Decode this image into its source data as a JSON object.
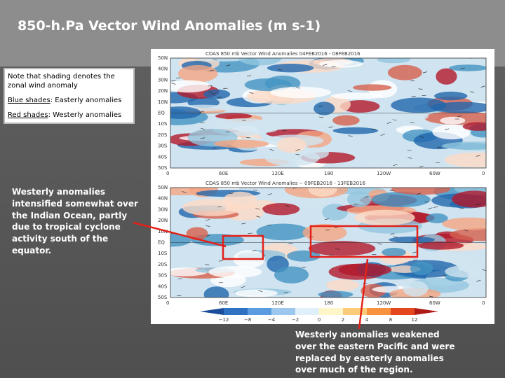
{
  "title": "850-h.Pa Vector Wind Anomalies  (m s-1)",
  "note_box": {
    "line1": "Note that shading denotes the zonal wind anomaly",
    "blue_label": "Blue shades",
    "blue_text": ": Easterly anomalies",
    "red_label": "Red shades",
    "red_text": ": Westerly anomalies"
  },
  "maps": [
    {
      "title": "CDAS 850 mb Vector Wind Anomalies   04FEB2016 - 08FEB2016"
    },
    {
      "title": "CDAS 850 mb Vector Wind Anomalies -- 09FEB2016 - 13FEB2016"
    }
  ],
  "lat_labels": [
    "50N",
    "40N",
    "30N",
    "20N",
    "10N",
    "EQ",
    "10S",
    "20S",
    "30S",
    "40S",
    "50S"
  ],
  "lon_labels": [
    "0",
    "60E",
    "120E",
    "180",
    "120W",
    "60W",
    "0"
  ],
  "colorbar": {
    "labels": [
      "−12",
      "−8",
      "−4",
      "−2",
      "0",
      "2",
      "4",
      "8",
      "12"
    ]
  },
  "annotation_left": "Westerly anomalies intensified somewhat over the Indian Ocean, partly due to tropical cyclone activity south of the equator.",
  "annotation_bottom": "Westerly anomalies weakened over the eastern Pacific and were replaced by easterly anomalies over much of the region."
}
